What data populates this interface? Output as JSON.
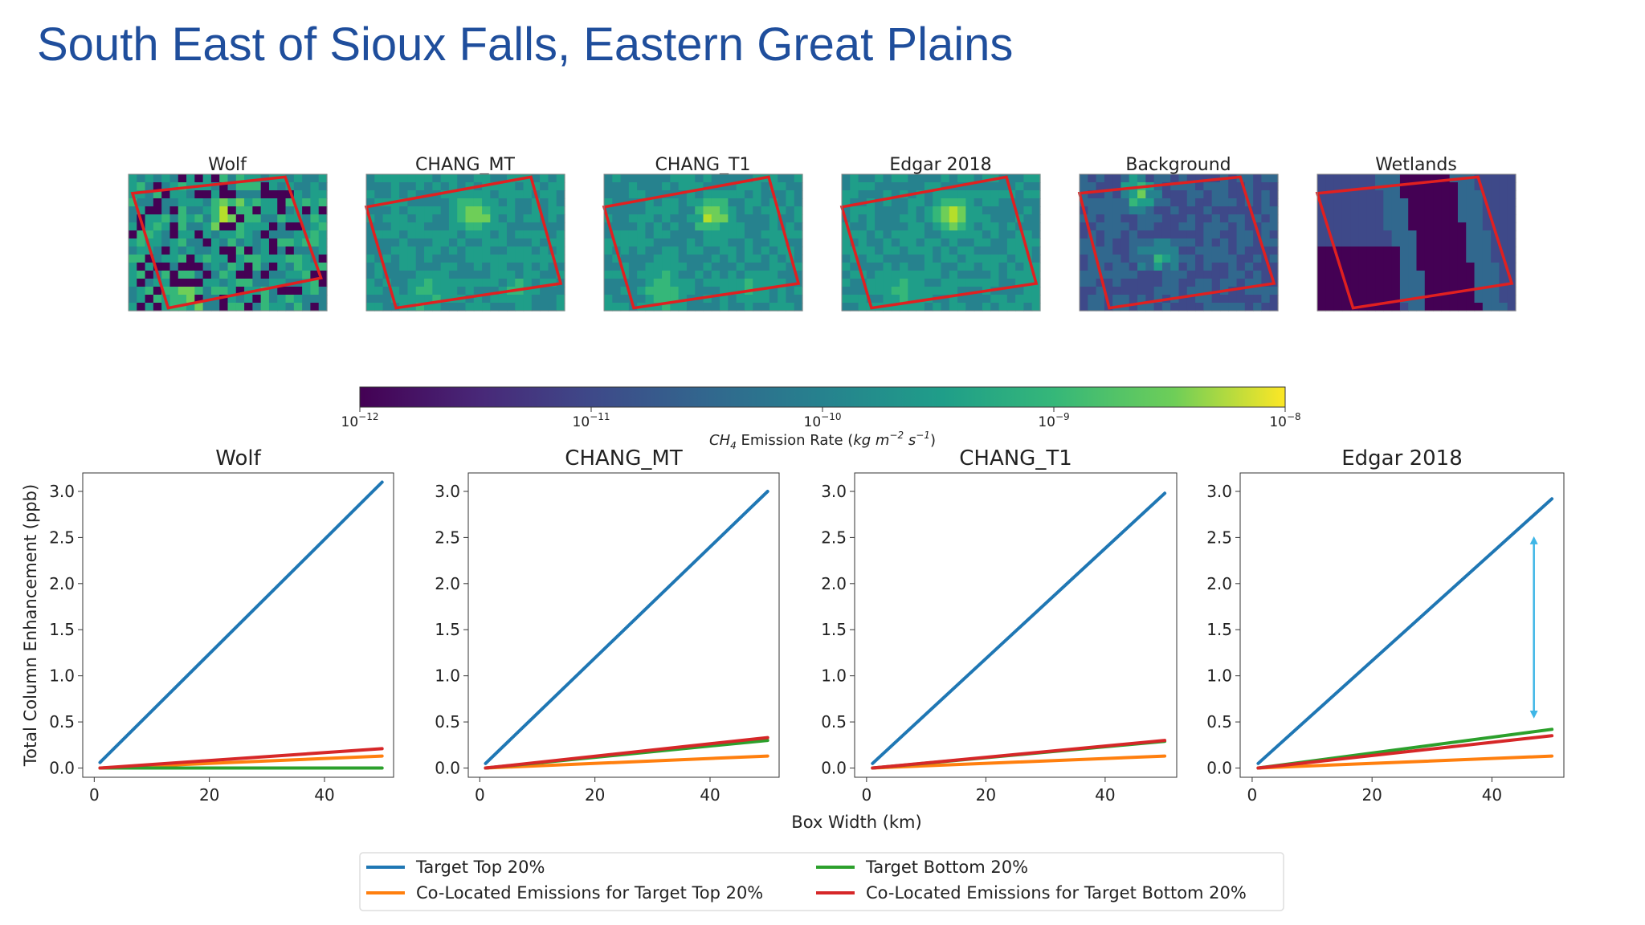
{
  "slide": {
    "title": "South East of Sioux Falls, Eastern Great Plains"
  },
  "maps": {
    "panels": [
      {
        "title": "Wolf"
      },
      {
        "title": "CHANG_MT"
      },
      {
        "title": "CHANG_T1"
      },
      {
        "title": "Edgar 2018"
      },
      {
        "title": "Background"
      },
      {
        "title": "Wetlands"
      }
    ],
    "box_color": "#e02020"
  },
  "colorbar": {
    "colormap": "viridis",
    "scale": "log",
    "ticks": [
      {
        "base": "10",
        "exp": "−12"
      },
      {
        "base": "10",
        "exp": "−11"
      },
      {
        "base": "10",
        "exp": "−10"
      },
      {
        "base": "10",
        "exp": "−9"
      },
      {
        "base": "10",
        "exp": "−8"
      }
    ],
    "label_prefix": "CH",
    "label_sub": "4",
    "label_mid": " Emission Rate (",
    "label_unit_a": "kg m",
    "label_unit_exp_a": "−2",
    "label_unit_b": " s",
    "label_unit_exp_b": "−1",
    "label_suffix": ")"
  },
  "chart_data": [
    {
      "type": "line",
      "title": "Wolf",
      "xlim": [
        -2,
        52
      ],
      "ylim": [
        -0.1,
        3.2
      ],
      "xticks": [
        "0",
        "20",
        "40"
      ],
      "xtick_values": [
        0,
        20,
        40
      ],
      "yticks": [
        "0.0",
        "0.5",
        "1.0",
        "1.5",
        "2.0",
        "2.5",
        "3.0"
      ],
      "ytick_values": [
        0,
        0.5,
        1.0,
        1.5,
        2.0,
        2.5,
        3.0
      ],
      "ylabel": "Total Column Enhancement (ppb)",
      "xlabel": "",
      "x": [
        1,
        50
      ],
      "series": [
        {
          "name": "Target Top 20%",
          "color": "#1f77b4",
          "values": [
            0.06,
            3.1
          ]
        },
        {
          "name": "Co-Located Emissions for Target Top 20%",
          "color": "#ff7f0e",
          "values": [
            0.0,
            0.13
          ]
        },
        {
          "name": "Target Bottom 20%",
          "color": "#2ca02c",
          "values": [
            0.0,
            0.0
          ]
        },
        {
          "name": "Co-Located Emissions for Target Bottom 20%",
          "color": "#d62728",
          "values": [
            0.0,
            0.21
          ]
        }
      ]
    },
    {
      "type": "line",
      "title": "CHANG_MT",
      "xlim": [
        -2,
        52
      ],
      "ylim": [
        -0.1,
        3.2
      ],
      "xticks": [
        "0",
        "20",
        "40"
      ],
      "xtick_values": [
        0,
        20,
        40
      ],
      "yticks": [
        "0.0",
        "0.5",
        "1.0",
        "1.5",
        "2.0",
        "2.5",
        "3.0"
      ],
      "ytick_values": [
        0,
        0.5,
        1.0,
        1.5,
        2.0,
        2.5,
        3.0
      ],
      "ylabel": "",
      "xlabel": "",
      "x": [
        1,
        50
      ],
      "series": [
        {
          "name": "Target Top 20%",
          "color": "#1f77b4",
          "values": [
            0.05,
            3.0
          ]
        },
        {
          "name": "Co-Located Emissions for Target Top 20%",
          "color": "#ff7f0e",
          "values": [
            0.0,
            0.13
          ]
        },
        {
          "name": "Target Bottom 20%",
          "color": "#2ca02c",
          "values": [
            0.0,
            0.3
          ]
        },
        {
          "name": "Co-Located Emissions for Target Bottom 20%",
          "color": "#d62728",
          "values": [
            0.0,
            0.33
          ]
        }
      ]
    },
    {
      "type": "line",
      "title": "CHANG_T1",
      "xlim": [
        -2,
        52
      ],
      "ylim": [
        -0.1,
        3.2
      ],
      "xticks": [
        "0",
        "20",
        "40"
      ],
      "xtick_values": [
        0,
        20,
        40
      ],
      "yticks": [
        "0.0",
        "0.5",
        "1.0",
        "1.5",
        "2.0",
        "2.5",
        "3.0"
      ],
      "ytick_values": [
        0,
        0.5,
        1.0,
        1.5,
        2.0,
        2.5,
        3.0
      ],
      "ylabel": "",
      "xlabel": "Box Width (km)",
      "x": [
        1,
        50
      ],
      "series": [
        {
          "name": "Target Top 20%",
          "color": "#1f77b4",
          "values": [
            0.05,
            2.98
          ]
        },
        {
          "name": "Co-Located Emissions for Target Top 20%",
          "color": "#ff7f0e",
          "values": [
            0.0,
            0.13
          ]
        },
        {
          "name": "Target Bottom 20%",
          "color": "#2ca02c",
          "values": [
            0.0,
            0.29
          ]
        },
        {
          "name": "Co-Located Emissions for Target Bottom 20%",
          "color": "#d62728",
          "values": [
            0.0,
            0.3
          ]
        }
      ]
    },
    {
      "type": "line",
      "title": "Edgar 2018",
      "xlim": [
        -2,
        52
      ],
      "ylim": [
        -0.1,
        3.2
      ],
      "xticks": [
        "0",
        "20",
        "40"
      ],
      "xtick_values": [
        0,
        20,
        40
      ],
      "yticks": [
        "0.0",
        "0.5",
        "1.0",
        "1.5",
        "2.0",
        "2.5",
        "3.0"
      ],
      "ytick_values": [
        0,
        0.5,
        1.0,
        1.5,
        2.0,
        2.5,
        3.0
      ],
      "ylabel": "",
      "xlabel": "",
      "x": [
        1,
        50
      ],
      "series": [
        {
          "name": "Target Top 20%",
          "color": "#1f77b4",
          "values": [
            0.05,
            2.92
          ]
        },
        {
          "name": "Co-Located Emissions for Target Top 20%",
          "color": "#ff7f0e",
          "values": [
            0.0,
            0.13
          ]
        },
        {
          "name": "Target Bottom 20%",
          "color": "#2ca02c",
          "values": [
            0.0,
            0.42
          ]
        },
        {
          "name": "Co-Located Emissions for Target Bottom 20%",
          "color": "#d62728",
          "values": [
            0.0,
            0.35
          ]
        }
      ],
      "annotation": {
        "type": "double-arrow",
        "color": "#3fb6e6",
        "x": 47,
        "y_from": 2.47,
        "y_to": 0.58
      }
    }
  ],
  "legend": {
    "placement": "bottom-center",
    "entries": [
      {
        "label": "Target Top 20%",
        "color": "#1f77b4"
      },
      {
        "label": "Target Bottom 20%",
        "color": "#2ca02c"
      },
      {
        "label": "Co-Located Emissions for Target Top 20%",
        "color": "#ff7f0e"
      },
      {
        "label": "Co-Located Emissions for Target Bottom 20%",
        "color": "#d62728"
      }
    ]
  }
}
